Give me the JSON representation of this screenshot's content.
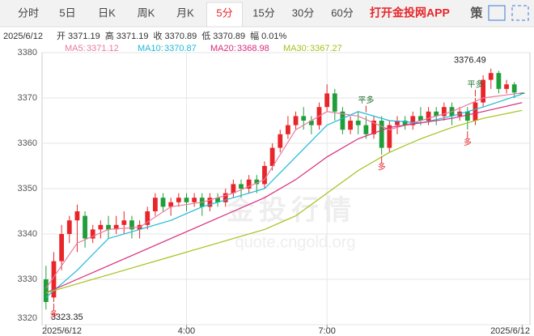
{
  "toolbar": {
    "tabs": [
      "分时",
      "5日",
      "日K",
      "周K",
      "月K",
      "5分",
      "15分",
      "30分",
      "60分"
    ],
    "active_tab": "5分",
    "app_link": "打开金投网APP",
    "strategy_icon": "策"
  },
  "quote": {
    "date": "2025/6/12",
    "fields": [
      {
        "label": "开",
        "value": 3371.19
      },
      {
        "label": "高",
        "value": 3371.19
      },
      {
        "label": "收",
        "value": 3370.89
      },
      {
        "label": "低",
        "value": 3370.89
      },
      {
        "label": "幅",
        "value": 0.01,
        "value_label": "0.01%"
      }
    ]
  },
  "chart_data": {
    "type": "candlestick",
    "up_color": "#e8262a",
    "down_color": "#1f9e3a",
    "x": [
      0,
      1,
      2,
      3,
      4,
      5,
      6,
      7,
      8,
      9,
      10,
      11,
      12,
      13,
      14,
      15,
      16,
      17,
      18,
      19,
      20,
      21,
      22,
      23,
      24,
      25,
      26,
      27,
      28,
      29,
      30,
      31,
      32,
      33,
      34,
      35,
      36,
      37,
      38,
      39,
      40,
      41,
      42,
      43,
      44,
      45,
      46,
      47,
      48,
      49,
      50,
      51,
      52,
      53,
      54,
      55,
      56,
      57,
      58,
      59,
      60,
      61
    ],
    "open": [
      3330,
      3326,
      3334,
      3340,
      3343,
      3344,
      3339,
      3341,
      3342,
      3341,
      3342,
      3343,
      3341,
      3342,
      3345,
      3348,
      3346,
      3347,
      3348,
      3347,
      3348,
      3346,
      3348,
      3347,
      3349,
      3351,
      3350,
      3352,
      3351,
      3355,
      3359,
      3362,
      3364,
      3366,
      3365,
      3364,
      3368,
      3371,
      3367,
      3363,
      3365,
      3364,
      3362,
      3365,
      3359,
      3364,
      3365,
      3364,
      3366,
      3365,
      3367,
      3366,
      3368,
      3366,
      3367,
      3365,
      3369,
      3374,
      3375.5,
      3372,
      3373,
      3371.19
    ],
    "close": [
      3325,
      3334,
      3340,
      3343,
      3345,
      3339,
      3341,
      3342,
      3341,
      3342,
      3343,
      3341,
      3342,
      3345,
      3348,
      3346,
      3347,
      3348,
      3347,
      3348,
      3346,
      3348,
      3347,
      3349,
      3351,
      3350,
      3352,
      3351,
      3355,
      3359,
      3362,
      3364,
      3366,
      3365,
      3364,
      3368,
      3371,
      3367,
      3363,
      3365,
      3364,
      3362,
      3365,
      3359,
      3364,
      3365,
      3364,
      3366,
      3365,
      3367,
      3366,
      3368,
      3366,
      3367,
      3365,
      3369,
      3374,
      3375.5,
      3372,
      3373,
      3371.19,
      3370.89
    ],
    "low": [
      3323.35,
      3325,
      3332,
      3338,
      3336,
      3337,
      3338,
      3339,
      3339,
      3340,
      3340,
      3339,
      3339,
      3341,
      3344,
      3345,
      3344,
      3346,
      3345,
      3346,
      3344,
      3345,
      3346,
      3346,
      3348,
      3348,
      3349,
      3349,
      3350,
      3354,
      3358,
      3361,
      3363,
      3363,
      3362,
      3363,
      3367,
      3365,
      3362,
      3362,
      3362,
      3361,
      3361,
      3357.5,
      3358,
      3362,
      3363,
      3363,
      3364,
      3364,
      3364,
      3365,
      3364,
      3365,
      3363,
      3364,
      3368,
      3372,
      3371,
      3371,
      3370,
      3370.89
    ],
    "high": [
      3333,
      3336,
      3342,
      3344,
      3346.5,
      3345,
      3342,
      3343,
      3344,
      3344,
      3345,
      3344,
      3343,
      3346,
      3349,
      3349,
      3348,
      3349,
      3349,
      3349,
      3349,
      3349,
      3349,
      3350,
      3352,
      3352,
      3353,
      3353,
      3356,
      3360,
      3363,
      3366,
      3367,
      3368,
      3366,
      3369,
      3373,
      3372,
      3368,
      3366,
      3367,
      3366,
      3366,
      3366,
      3365,
      3366,
      3366,
      3367,
      3368,
      3368,
      3368,
      3369,
      3369,
      3368,
      3368,
      3370,
      3375,
      3376.49,
      3376,
      3374,
      3373.5,
      3371.19
    ],
    "lines": [
      {
        "name": "MA5:",
        "last": 3371.12,
        "color": "#e87ca0",
        "x": [
          0,
          4,
          8,
          12,
          16,
          20,
          24,
          28,
          32,
          36,
          40,
          44,
          48,
          52,
          56,
          61
        ],
        "values": [
          3328,
          3338,
          3341,
          3341.5,
          3346,
          3347,
          3349,
          3352,
          3363,
          3367,
          3366,
          3363,
          3365,
          3367,
          3370,
          3371.12
        ]
      },
      {
        "name": "MA10:",
        "last": 3370.87,
        "color": "#1fb8d8",
        "x": [
          0,
          4,
          8,
          12,
          16,
          20,
          24,
          28,
          32,
          36,
          40,
          44,
          48,
          52,
          56,
          61
        ],
        "values": [
          3326,
          3332,
          3339,
          3341,
          3343,
          3346,
          3348,
          3350,
          3357,
          3364,
          3367,
          3365,
          3364.5,
          3366,
          3368,
          3370.87
        ]
      },
      {
        "name": "MA20:",
        "last": 3368.98,
        "color": "#d82c7c",
        "x": [
          0,
          4,
          8,
          12,
          16,
          20,
          24,
          28,
          32,
          36,
          40,
          44,
          48,
          52,
          56,
          61
        ],
        "values": [
          3327,
          3330,
          3333,
          3336,
          3339,
          3342,
          3345,
          3348,
          3352,
          3357,
          3361,
          3363.5,
          3364.5,
          3365.5,
          3367,
          3368.98
        ]
      },
      {
        "name": "MA30:",
        "last": 3367.27,
        "color": "#a3c21c",
        "x": [
          0,
          4,
          8,
          12,
          16,
          20,
          24,
          28,
          32,
          36,
          40,
          44,
          48,
          52,
          56,
          61
        ],
        "values": [
          3327,
          3329,
          3331,
          3333,
          3335,
          3337,
          3339,
          3341,
          3344,
          3349,
          3354,
          3358,
          3361,
          3363.5,
          3365.5,
          3367.27
        ]
      }
    ],
    "xlim": [
      -0.5,
      62
    ],
    "ylim": [
      3320,
      3380
    ],
    "yticks": [
      3320,
      3330,
      3340,
      3350,
      3360,
      3370,
      3380
    ],
    "xticks": [
      {
        "value": 0,
        "label": "2025/6/12"
      },
      {
        "value": 18,
        "label": "4:00"
      },
      {
        "value": 36,
        "label": "7:00"
      },
      {
        "value": 61,
        "label": "2025/6/12"
      }
    ],
    "grid": true,
    "extremes": [
      {
        "x": 57,
        "value": 3376.49
      },
      {
        "x": 0,
        "value": 3323.35
      }
    ],
    "annotations": [
      {
        "text": "平多",
        "x": 41,
        "y": 3366.5,
        "side": "above"
      },
      {
        "text": "多",
        "x": 43,
        "y": 3357.5,
        "side": "below"
      },
      {
        "text": "平多",
        "x": 55,
        "y": 3370,
        "side": "above"
      },
      {
        "text": "多",
        "x": 54,
        "y": 3363,
        "side": "below"
      },
      {
        "text": "多",
        "x": 1,
        "y": 3325,
        "side": "below"
      }
    ],
    "watermark": [
      "金投行情",
      "quote.cngold.org"
    ]
  }
}
